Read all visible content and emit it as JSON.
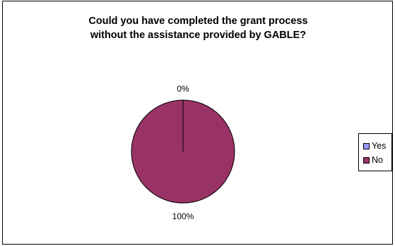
{
  "chart_data": {
    "type": "pie",
    "title_lines": [
      "Could you have completed the grant process",
      "without the assistance provided by GABLE?"
    ],
    "slices": [
      {
        "label": "Yes",
        "value": 0,
        "percent_label": "0%",
        "color": "#9999ff"
      },
      {
        "label": "No",
        "value": 100,
        "percent_label": "100%",
        "color": "#993366"
      }
    ],
    "legend_position": "right"
  }
}
